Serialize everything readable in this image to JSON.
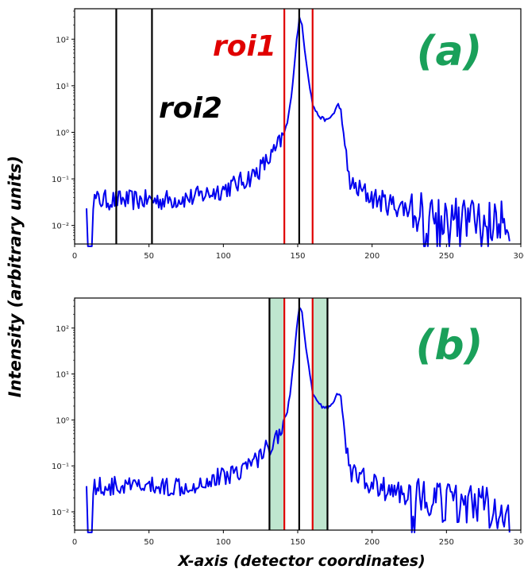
{
  "figure": {
    "ylabel": "Intensity (arbitrary units)",
    "xlabel": "X-axis (detector coordinates)"
  },
  "chart_data": [
    {
      "type": "line",
      "panel_label": "(a)",
      "y_scale": "log",
      "xlim": [
        0,
        300
      ],
      "ylim": [
        0.004,
        450
      ],
      "x_ticks": [
        0,
        50,
        100,
        150,
        200,
        250,
        300
      ],
      "y_ticks": [
        0.01,
        0.1,
        1,
        10,
        100
      ],
      "y_tick_labels": [
        "10⁻²",
        "10⁻¹",
        "10⁰",
        "10¹",
        "10²"
      ],
      "series": [
        {
          "color": "#0000ee",
          "x": [
            8,
            20,
            40,
            60,
            80,
            100,
            110,
            120,
            125,
            130,
            135,
            140,
            143,
            145,
            147,
            149,
            151,
            153,
            155,
            158,
            160,
            163,
            166,
            170,
            174,
            177,
            179,
            181,
            183,
            186,
            190,
            195,
            200,
            210,
            220,
            230,
            240,
            260,
            280,
            293
          ],
          "y": [
            0.035,
            0.035,
            0.035,
            0.035,
            0.04,
            0.06,
            0.08,
            0.12,
            0.17,
            0.25,
            0.4,
            0.8,
            1.6,
            4,
            15,
            80,
            280,
            200,
            50,
            10,
            4,
            2.5,
            2,
            1.8,
            2.5,
            4,
            3,
            0.8,
            0.2,
            0.07,
            0.06,
            0.05,
            0.04,
            0.03,
            0.025,
            0.02,
            0.018,
            0.015,
            0.012,
            0.012
          ]
        }
      ],
      "vlines": [
        {
          "x": 28,
          "color": "#000000"
        },
        {
          "x": 52,
          "color": "#000000"
        },
        {
          "x": 141,
          "color": "#e00000"
        },
        {
          "x": 151,
          "color": "#000000"
        },
        {
          "x": 160,
          "color": "#e00000"
        }
      ],
      "annotations": [
        {
          "text": "roi1",
          "color": "#e00000"
        },
        {
          "text": "roi2",
          "color": "#000000"
        }
      ]
    },
    {
      "type": "line",
      "panel_label": "(b)",
      "y_scale": "log",
      "xlim": [
        0,
        300
      ],
      "ylim": [
        0.004,
        450
      ],
      "x_ticks": [
        0,
        50,
        100,
        150,
        200,
        250,
        300
      ],
      "y_ticks": [
        0.01,
        0.1,
        1,
        10,
        100
      ],
      "y_tick_labels": [
        "10⁻²",
        "10⁻¹",
        "10⁰",
        "10¹",
        "10²"
      ],
      "series": [
        {
          "color": "#0000ee",
          "x": [
            8,
            20,
            40,
            60,
            80,
            100,
            110,
            120,
            125,
            130,
            135,
            140,
            143,
            145,
            147,
            149,
            151,
            153,
            155,
            158,
            160,
            163,
            166,
            170,
            174,
            177,
            179,
            181,
            183,
            186,
            190,
            195,
            200,
            210,
            220,
            230,
            240,
            260,
            280,
            293
          ],
          "y": [
            0.035,
            0.035,
            0.035,
            0.035,
            0.04,
            0.06,
            0.08,
            0.12,
            0.17,
            0.25,
            0.4,
            0.8,
            1.6,
            4,
            15,
            80,
            280,
            200,
            50,
            10,
            4,
            2.5,
            2,
            1.8,
            2.5,
            4,
            3,
            0.8,
            0.2,
            0.07,
            0.06,
            0.05,
            0.04,
            0.03,
            0.025,
            0.02,
            0.018,
            0.015,
            0.012,
            0.012
          ]
        }
      ],
      "shaded_regions": [
        {
          "x0": 131,
          "x1": 141,
          "color": "#bfe6cf"
        },
        {
          "x0": 160,
          "x1": 170,
          "color": "#bfe6cf"
        }
      ],
      "vlines": [
        {
          "x": 131,
          "color": "#000000"
        },
        {
          "x": 141,
          "color": "#e00000"
        },
        {
          "x": 151,
          "color": "#000000"
        },
        {
          "x": 160,
          "color": "#e00000"
        },
        {
          "x": 170,
          "color": "#000000"
        }
      ]
    }
  ],
  "colors": {
    "curve": "#0000ee",
    "panel_label": "#1aa05a",
    "roi1": "#e00000",
    "roi2": "#000000"
  }
}
